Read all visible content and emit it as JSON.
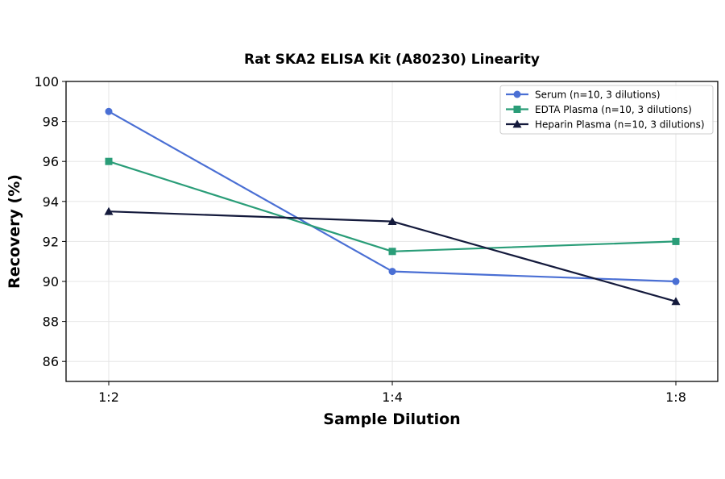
{
  "chart_data": {
    "type": "line",
    "title": "Rat SKA2 ELISA Kit (A80230) Linearity",
    "xlabel": "Sample Dilution",
    "ylabel": "Recovery (%)",
    "categories": [
      "1:2",
      "1:4",
      "1:8"
    ],
    "ylim": [
      85,
      100
    ],
    "yticks": [
      86,
      88,
      90,
      92,
      94,
      96,
      98,
      100
    ],
    "grid": true,
    "legend_position": "top-right",
    "series": [
      {
        "name": "Serum (n=10, 3 dilutions)",
        "values": [
          98.5,
          90.5,
          90.0
        ],
        "color": "#4a6fd4",
        "marker": "circle"
      },
      {
        "name": "EDTA Plasma (n=10, 3 dilutions)",
        "values": [
          96.0,
          91.5,
          92.0
        ],
        "color": "#2a9d78",
        "marker": "square"
      },
      {
        "name": "Heparin Plasma (n=10, 3 dilutions)",
        "values": [
          93.5,
          93.0,
          89.0
        ],
        "color": "#141a3c",
        "marker": "triangle"
      }
    ]
  }
}
